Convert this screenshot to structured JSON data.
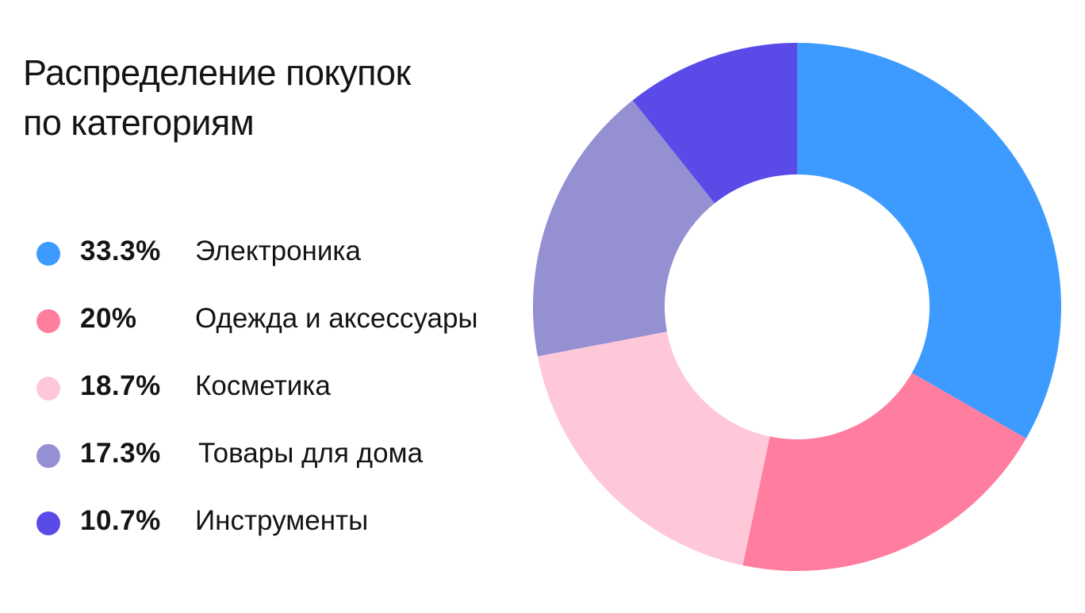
{
  "title_lines": [
    "Распределение покупок",
    "по категориям"
  ],
  "chart_data": {
    "type": "pie",
    "donut": true,
    "title": "Распределение покупок по категориям",
    "legend_position": "left",
    "slices": [
      {
        "label": "Электроника",
        "value": 33.3,
        "value_label": "33.3%",
        "color": "#3d9bff"
      },
      {
        "label": "Одежда и аксессуары",
        "value": 20,
        "value_label": "20%",
        "color": "#ff7d9e"
      },
      {
        "label": "Косметика",
        "value": 18.7,
        "value_label": "18.7%",
        "color": "#ffc8d8"
      },
      {
        "label": "Товары для дома",
        "value": 17.3,
        "value_label": "17.3%",
        "color": "#9590d2"
      },
      {
        "label": "Инструменты",
        "value": 10.7,
        "value_label": "10.7%",
        "color": "#5a4be8"
      }
    ]
  }
}
